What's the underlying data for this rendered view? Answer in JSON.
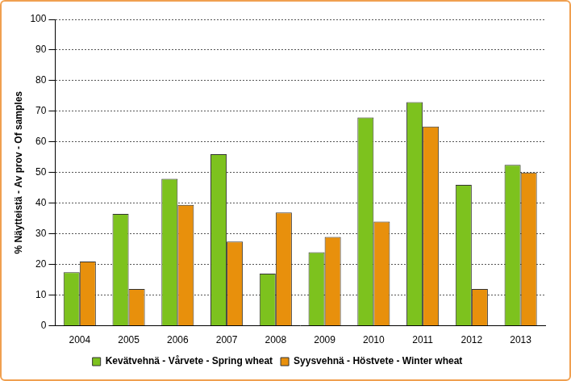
{
  "chart_data": {
    "type": "bar",
    "y_label": "% Näytteistä - Av prov - Of samples",
    "categories": [
      "2004",
      "2005",
      "2006",
      "2007",
      "2008",
      "2009",
      "2010",
      "2011",
      "2012",
      "2013"
    ],
    "series": [
      {
        "name": "Kevätvehnä - Vårvete - Spring wheat",
        "color": "#7dc21e",
        "values": [
          17.5,
          36.5,
          48,
          56,
          17,
          24,
          68,
          73,
          46,
          52.5
        ]
      },
      {
        "name": "Syysvehnä - Höstvete - Winter wheat",
        "color": "#e8900c",
        "values": [
          21,
          12,
          39.5,
          27.5,
          37,
          29,
          34,
          65,
          12,
          50
        ]
      }
    ],
    "ylim": [
      0,
      100
    ],
    "yticks": [
      0,
      10,
      20,
      30,
      40,
      50,
      60,
      70,
      80,
      90,
      100
    ],
    "grid": true,
    "legend": "bottom"
  }
}
